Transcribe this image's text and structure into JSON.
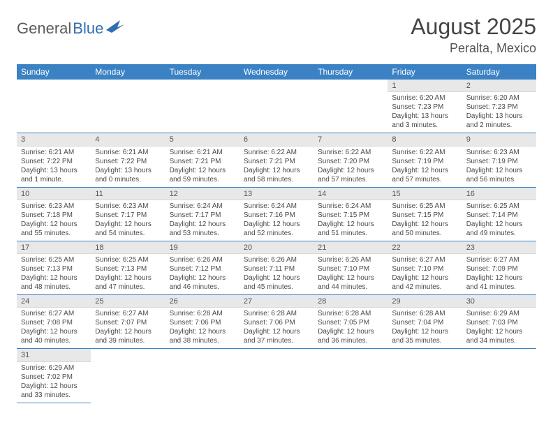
{
  "brand": {
    "word1": "General",
    "word2": "Blue"
  },
  "title": {
    "month": "August 2025",
    "location": "Peralta, Mexico"
  },
  "colors": {
    "header_bg": "#3b82c4",
    "header_text": "#ffffff",
    "daynum_bg": "#e8e8e8",
    "rule": "#3b82c4",
    "body_text": "#4a4a4a",
    "logo_gray": "#5a5a5a",
    "logo_blue": "#2f6fb0"
  },
  "typography": {
    "month_fontsize": 32,
    "location_fontsize": 18,
    "th_fontsize": 12,
    "cell_fontsize": 10
  },
  "weekdays": [
    "Sunday",
    "Monday",
    "Tuesday",
    "Wednesday",
    "Thursday",
    "Friday",
    "Saturday"
  ],
  "weeks": [
    [
      null,
      null,
      null,
      null,
      null,
      {
        "n": "1",
        "sunrise": "Sunrise: 6:20 AM",
        "sunset": "Sunset: 7:23 PM",
        "daylight": "Daylight: 13 hours and 3 minutes."
      },
      {
        "n": "2",
        "sunrise": "Sunrise: 6:20 AM",
        "sunset": "Sunset: 7:23 PM",
        "daylight": "Daylight: 13 hours and 2 minutes."
      }
    ],
    [
      {
        "n": "3",
        "sunrise": "Sunrise: 6:21 AM",
        "sunset": "Sunset: 7:22 PM",
        "daylight": "Daylight: 13 hours and 1 minute."
      },
      {
        "n": "4",
        "sunrise": "Sunrise: 6:21 AM",
        "sunset": "Sunset: 7:22 PM",
        "daylight": "Daylight: 13 hours and 0 minutes."
      },
      {
        "n": "5",
        "sunrise": "Sunrise: 6:21 AM",
        "sunset": "Sunset: 7:21 PM",
        "daylight": "Daylight: 12 hours and 59 minutes."
      },
      {
        "n": "6",
        "sunrise": "Sunrise: 6:22 AM",
        "sunset": "Sunset: 7:21 PM",
        "daylight": "Daylight: 12 hours and 58 minutes."
      },
      {
        "n": "7",
        "sunrise": "Sunrise: 6:22 AM",
        "sunset": "Sunset: 7:20 PM",
        "daylight": "Daylight: 12 hours and 57 minutes."
      },
      {
        "n": "8",
        "sunrise": "Sunrise: 6:22 AM",
        "sunset": "Sunset: 7:19 PM",
        "daylight": "Daylight: 12 hours and 57 minutes."
      },
      {
        "n": "9",
        "sunrise": "Sunrise: 6:23 AM",
        "sunset": "Sunset: 7:19 PM",
        "daylight": "Daylight: 12 hours and 56 minutes."
      }
    ],
    [
      {
        "n": "10",
        "sunrise": "Sunrise: 6:23 AM",
        "sunset": "Sunset: 7:18 PM",
        "daylight": "Daylight: 12 hours and 55 minutes."
      },
      {
        "n": "11",
        "sunrise": "Sunrise: 6:23 AM",
        "sunset": "Sunset: 7:17 PM",
        "daylight": "Daylight: 12 hours and 54 minutes."
      },
      {
        "n": "12",
        "sunrise": "Sunrise: 6:24 AM",
        "sunset": "Sunset: 7:17 PM",
        "daylight": "Daylight: 12 hours and 53 minutes."
      },
      {
        "n": "13",
        "sunrise": "Sunrise: 6:24 AM",
        "sunset": "Sunset: 7:16 PM",
        "daylight": "Daylight: 12 hours and 52 minutes."
      },
      {
        "n": "14",
        "sunrise": "Sunrise: 6:24 AM",
        "sunset": "Sunset: 7:15 PM",
        "daylight": "Daylight: 12 hours and 51 minutes."
      },
      {
        "n": "15",
        "sunrise": "Sunrise: 6:25 AM",
        "sunset": "Sunset: 7:15 PM",
        "daylight": "Daylight: 12 hours and 50 minutes."
      },
      {
        "n": "16",
        "sunrise": "Sunrise: 6:25 AM",
        "sunset": "Sunset: 7:14 PM",
        "daylight": "Daylight: 12 hours and 49 minutes."
      }
    ],
    [
      {
        "n": "17",
        "sunrise": "Sunrise: 6:25 AM",
        "sunset": "Sunset: 7:13 PM",
        "daylight": "Daylight: 12 hours and 48 minutes."
      },
      {
        "n": "18",
        "sunrise": "Sunrise: 6:25 AM",
        "sunset": "Sunset: 7:13 PM",
        "daylight": "Daylight: 12 hours and 47 minutes."
      },
      {
        "n": "19",
        "sunrise": "Sunrise: 6:26 AM",
        "sunset": "Sunset: 7:12 PM",
        "daylight": "Daylight: 12 hours and 46 minutes."
      },
      {
        "n": "20",
        "sunrise": "Sunrise: 6:26 AM",
        "sunset": "Sunset: 7:11 PM",
        "daylight": "Daylight: 12 hours and 45 minutes."
      },
      {
        "n": "21",
        "sunrise": "Sunrise: 6:26 AM",
        "sunset": "Sunset: 7:10 PM",
        "daylight": "Daylight: 12 hours and 44 minutes."
      },
      {
        "n": "22",
        "sunrise": "Sunrise: 6:27 AM",
        "sunset": "Sunset: 7:10 PM",
        "daylight": "Daylight: 12 hours and 42 minutes."
      },
      {
        "n": "23",
        "sunrise": "Sunrise: 6:27 AM",
        "sunset": "Sunset: 7:09 PM",
        "daylight": "Daylight: 12 hours and 41 minutes."
      }
    ],
    [
      {
        "n": "24",
        "sunrise": "Sunrise: 6:27 AM",
        "sunset": "Sunset: 7:08 PM",
        "daylight": "Daylight: 12 hours and 40 minutes."
      },
      {
        "n": "25",
        "sunrise": "Sunrise: 6:27 AM",
        "sunset": "Sunset: 7:07 PM",
        "daylight": "Daylight: 12 hours and 39 minutes."
      },
      {
        "n": "26",
        "sunrise": "Sunrise: 6:28 AM",
        "sunset": "Sunset: 7:06 PM",
        "daylight": "Daylight: 12 hours and 38 minutes."
      },
      {
        "n": "27",
        "sunrise": "Sunrise: 6:28 AM",
        "sunset": "Sunset: 7:06 PM",
        "daylight": "Daylight: 12 hours and 37 minutes."
      },
      {
        "n": "28",
        "sunrise": "Sunrise: 6:28 AM",
        "sunset": "Sunset: 7:05 PM",
        "daylight": "Daylight: 12 hours and 36 minutes."
      },
      {
        "n": "29",
        "sunrise": "Sunrise: 6:28 AM",
        "sunset": "Sunset: 7:04 PM",
        "daylight": "Daylight: 12 hours and 35 minutes."
      },
      {
        "n": "30",
        "sunrise": "Sunrise: 6:29 AM",
        "sunset": "Sunset: 7:03 PM",
        "daylight": "Daylight: 12 hours and 34 minutes."
      }
    ],
    [
      {
        "n": "31",
        "sunrise": "Sunrise: 6:29 AM",
        "sunset": "Sunset: 7:02 PM",
        "daylight": "Daylight: 12 hours and 33 minutes."
      },
      null,
      null,
      null,
      null,
      null,
      null
    ]
  ]
}
